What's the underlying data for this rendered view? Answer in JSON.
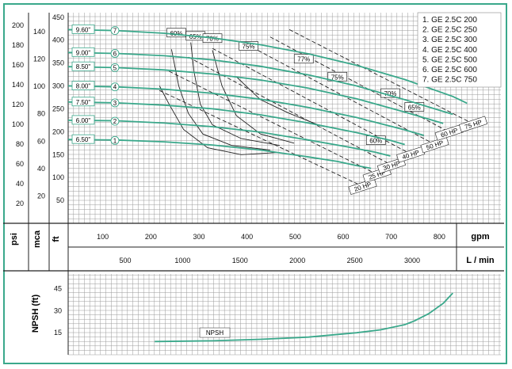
{
  "chart_data": [
    {
      "type": "line",
      "title": "",
      "x_unit": "gpm",
      "x_unit_metric": "L / min",
      "x_ticks": [
        100,
        200,
        300,
        400,
        500,
        600,
        700,
        800
      ],
      "x_ticks_metric": [
        500,
        1000,
        1500,
        2000,
        2500,
        3000
      ],
      "xlim": [
        0,
        900
      ],
      "ylim_ft": [
        0,
        460
      ],
      "y_units": [
        "psi",
        "mca",
        "ft"
      ],
      "y_ticks_ft": [
        50,
        100,
        150,
        200,
        250,
        300,
        350,
        400,
        450
      ],
      "y_ticks_psi": [
        20,
        40,
        60,
        80,
        100,
        120,
        140,
        160,
        180,
        200
      ],
      "y_ticks_mca": [
        20,
        40,
        60,
        80,
        100,
        120,
        140
      ],
      "legend": [
        "1. GE 2.5C 200",
        "2. GE 2.5C 250",
        "3. GE 2.5C 300",
        "4. GE 2.5C 400",
        "5. GE 2.5C 500",
        "6. GE 2.5C 600",
        "7. GE 2.5C 750"
      ],
      "series": [
        {
          "name": "1",
          "diameter": "6.50\"",
          "x": [
            0,
            100,
            200,
            300,
            400,
            500,
            560,
            600,
            630
          ],
          "y": [
            183,
            182,
            178,
            171,
            160,
            145,
            135,
            126,
            120
          ]
        },
        {
          "name": "2",
          "diameter": "6.00\"",
          "x": [
            0,
            100,
            200,
            300,
            400,
            500,
            580,
            640,
            670
          ],
          "y": [
            225,
            224,
            219,
            211,
            199,
            182,
            167,
            155,
            147
          ]
        },
        {
          "name": "3",
          "diameter": "7.50\"",
          "x": [
            0,
            100,
            200,
            300,
            400,
            500,
            600,
            670,
            700
          ],
          "y": [
            265,
            263,
            258,
            250,
            237,
            219,
            198,
            181,
            172
          ]
        },
        {
          "name": "4",
          "diameter": "8.00\"",
          "x": [
            0,
            100,
            200,
            300,
            400,
            500,
            600,
            700,
            740
          ],
          "y": [
            300,
            298,
            293,
            284,
            271,
            253,
            231,
            204,
            192
          ]
        },
        {
          "name": "5",
          "diameter": "8.50\"",
          "x": [
            0,
            100,
            200,
            300,
            400,
            500,
            600,
            700,
            780
          ],
          "y": [
            342,
            340,
            335,
            326,
            313,
            295,
            272,
            243,
            218
          ]
        },
        {
          "name": "6",
          "diameter": "9.00\"",
          "x": [
            0,
            100,
            200,
            300,
            400,
            500,
            600,
            700,
            800
          ],
          "y": [
            373,
            371,
            366,
            357,
            343,
            324,
            300,
            270,
            238
          ]
        },
        {
          "name": "7",
          "diameter": "9.60\"",
          "x": [
            0,
            100,
            200,
            300,
            400,
            500,
            600,
            700,
            800,
            830
          ],
          "y": [
            423,
            421,
            415,
            405,
            390,
            370,
            345,
            314,
            277,
            262
          ]
        }
      ],
      "efficiency_labels": [
        "60%",
        "65%",
        "70%",
        "75%",
        "77%",
        "75%",
        "70%",
        "65%",
        "60%"
      ],
      "power_lines": [
        {
          "label": "20 HP",
          "x": [
            190,
            620
          ],
          "y": [
            290,
            77
          ]
        },
        {
          "label": "25 HP",
          "x": [
            210,
            650
          ],
          "y": [
            332,
            103
          ]
        },
        {
          "label": "30 HP",
          "x": [
            250,
            680
          ],
          "y": [
            363,
            123
          ]
        },
        {
          "label": "40 HP",
          "x": [
            300,
            720
          ],
          "y": [
            382,
            147
          ]
        },
        {
          "label": "50 HP",
          "x": [
            360,
            770
          ],
          "y": [
            397,
            168
          ]
        },
        {
          "label": "60 HP",
          "x": [
            420,
            800
          ],
          "y": [
            407,
            195
          ]
        },
        {
          "label": "75 HP",
          "x": [
            460,
            850
          ],
          "y": [
            423,
            213
          ]
        }
      ]
    },
    {
      "type": "line",
      "y_label": "NPSH (ft)",
      "y_ticks": [
        15,
        30,
        45
      ],
      "ylim": [
        0,
        55
      ],
      "series": [
        {
          "name": "NPSH",
          "x": [
            180,
            300,
            400,
            500,
            600,
            650,
            700,
            720,
            750,
            780,
            800
          ],
          "y": [
            9,
            9.5,
            10.5,
            12,
            15,
            17,
            20.5,
            23,
            28,
            35,
            42
          ]
        }
      ]
    }
  ],
  "colors": {
    "curve": "#3aa88b",
    "grid": "#9a9a9a",
    "frame": "#3aa88b",
    "ink": "#111111"
  }
}
